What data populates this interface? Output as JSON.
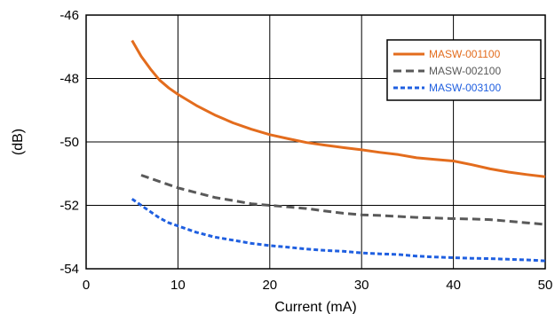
{
  "chart_data": {
    "type": "line",
    "xlabel": "Current (mA)",
    "ylabel": "(dB)",
    "xlim": [
      0,
      50
    ],
    "ylim": [
      -54,
      -46
    ],
    "x_ticks": [
      "0",
      "10",
      "20",
      "30",
      "40",
      "50"
    ],
    "y_ticks": [
      "-46",
      "-48",
      "-50",
      "-52",
      "-54"
    ],
    "grid": true,
    "legend_position": "top-right",
    "series": [
      {
        "name": "MASW-001100",
        "color": "#e36c1d",
        "style": "solid",
        "points": [
          [
            5,
            -46.8
          ],
          [
            6,
            -47.3
          ],
          [
            7,
            -47.7
          ],
          [
            8,
            -48.05
          ],
          [
            9,
            -48.3
          ],
          [
            10,
            -48.5
          ],
          [
            12,
            -48.85
          ],
          [
            14,
            -49.15
          ],
          [
            16,
            -49.4
          ],
          [
            18,
            -49.6
          ],
          [
            20,
            -49.77
          ],
          [
            22,
            -49.9
          ],
          [
            24,
            -50.02
          ],
          [
            26,
            -50.1
          ],
          [
            28,
            -50.18
          ],
          [
            30,
            -50.25
          ],
          [
            32,
            -50.33
          ],
          [
            34,
            -50.4
          ],
          [
            36,
            -50.5
          ],
          [
            38,
            -50.55
          ],
          [
            40,
            -50.6
          ],
          [
            42,
            -50.72
          ],
          [
            44,
            -50.85
          ],
          [
            46,
            -50.95
          ],
          [
            48,
            -51.03
          ],
          [
            50,
            -51.1
          ]
        ]
      },
      {
        "name": "MASW-002100",
        "color": "#595959",
        "style": "dashed",
        "points": [
          [
            6,
            -51.05
          ],
          [
            8,
            -51.25
          ],
          [
            10,
            -51.45
          ],
          [
            12,
            -51.6
          ],
          [
            14,
            -51.75
          ],
          [
            16,
            -51.85
          ],
          [
            18,
            -51.95
          ],
          [
            20,
            -52.0
          ],
          [
            22,
            -52.05
          ],
          [
            24,
            -52.1
          ],
          [
            26,
            -52.18
          ],
          [
            28,
            -52.25
          ],
          [
            30,
            -52.3
          ],
          [
            32,
            -52.32
          ],
          [
            34,
            -52.35
          ],
          [
            36,
            -52.38
          ],
          [
            38,
            -52.4
          ],
          [
            40,
            -52.42
          ],
          [
            42,
            -52.43
          ],
          [
            44,
            -52.45
          ],
          [
            46,
            -52.5
          ],
          [
            48,
            -52.55
          ],
          [
            50,
            -52.6
          ]
        ]
      },
      {
        "name": "MASW-003100",
        "color": "#1f5fe0",
        "style": "dashed",
        "points": [
          [
            5,
            -51.8
          ],
          [
            6,
            -52.0
          ],
          [
            7,
            -52.2
          ],
          [
            8,
            -52.4
          ],
          [
            9,
            -52.55
          ],
          [
            10,
            -52.65
          ],
          [
            12,
            -52.85
          ],
          [
            14,
            -53.0
          ],
          [
            16,
            -53.1
          ],
          [
            18,
            -53.2
          ],
          [
            20,
            -53.27
          ],
          [
            22,
            -53.32
          ],
          [
            24,
            -53.38
          ],
          [
            26,
            -53.42
          ],
          [
            28,
            -53.45
          ],
          [
            30,
            -53.5
          ],
          [
            32,
            -53.53
          ],
          [
            34,
            -53.55
          ],
          [
            36,
            -53.6
          ],
          [
            38,
            -53.63
          ],
          [
            40,
            -53.65
          ],
          [
            42,
            -53.67
          ],
          [
            44,
            -53.68
          ],
          [
            46,
            -53.7
          ],
          [
            48,
            -53.72
          ],
          [
            50,
            -53.75
          ]
        ]
      }
    ]
  }
}
